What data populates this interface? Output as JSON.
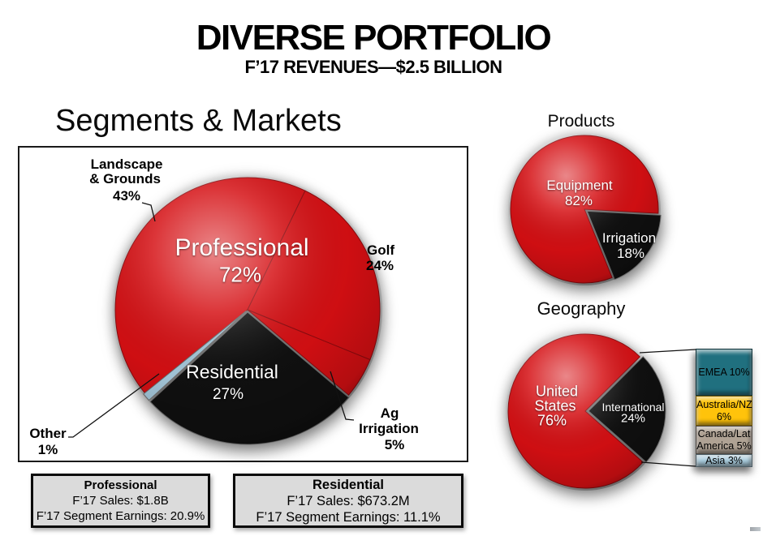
{
  "slide": {
    "title": "DIVERSE PORTFOLIO",
    "subtitle": "F’17 REVENUES—$2.5 BILLION"
  },
  "panels": {
    "segments_markets": {
      "heading": "Segments & Markets"
    },
    "products": {
      "heading": "Products"
    },
    "geography": {
      "heading": "Geography"
    }
  },
  "labels": {
    "main": {
      "professional": "Professional",
      "professional_pct": "72%",
      "residential": "Residential",
      "residential_pct": "27%",
      "landscape_1": "Landscape",
      "landscape_2": "& Grounds",
      "landscape_pct": "43%",
      "golf": "Golf",
      "golf_pct": "24%",
      "ag_1": "Ag",
      "ag_2": "Irrigation",
      "ag_pct": "5%",
      "other": "Other",
      "other_pct": "1%"
    },
    "products": {
      "equipment": "Equipment",
      "equipment_pct": "82%",
      "irrigation": "Irrigation",
      "irrigation_pct": "18%"
    },
    "geography": {
      "us_1": "United",
      "us_2": "States",
      "us_pct": "76%",
      "intl": "International",
      "intl_pct": "24%"
    }
  },
  "summary_boxes": [
    {
      "title": "Professional",
      "sales": "F’17 Sales: $1.8B",
      "earnings": "F’17 Segment Earnings: 20.9%"
    },
    {
      "title": "Residential",
      "sales": "F’17 Sales: $673.2M",
      "earnings": "F’17 Segment Earnings: 11.1%"
    }
  ],
  "colors": {
    "red": "#D50F13",
    "black": "#101010",
    "other_slice_blue": "#A6C9DC",
    "emea_teal": "#20707F",
    "australia_gold": "#FFC30B",
    "canada_tan": "#AFA294",
    "asia_blue": "#A9CCDD",
    "summary_box_gray": "#DBDBDB"
  },
  "chart_data": [
    {
      "type": "pie",
      "title": "Segments & Markets",
      "slices": [
        {
          "label": "Landscape & Grounds",
          "value": 43,
          "segment": "Professional",
          "color": "#D50F13"
        },
        {
          "label": "Golf",
          "value": 24,
          "segment": "Professional",
          "color": "#D50F13"
        },
        {
          "label": "Ag Irrigation",
          "value": 5,
          "segment": "Professional",
          "color": "#D50F13"
        },
        {
          "label": "Residential",
          "value": 27,
          "segment": "Residential",
          "color": "#101010"
        },
        {
          "label": "Other",
          "value": 1,
          "segment": "Other",
          "color": "#A6C9DC"
        }
      ],
      "segment_totals": [
        {
          "label": "Professional",
          "value": 72
        },
        {
          "label": "Residential",
          "value": 27
        },
        {
          "label": "Other",
          "value": 1
        }
      ]
    },
    {
      "type": "pie",
      "title": "Products",
      "slices": [
        {
          "label": "Equipment",
          "value": 82,
          "color": "#D50F13"
        },
        {
          "label": "Irrigation",
          "value": 18,
          "color": "#101010"
        }
      ]
    },
    {
      "type": "pie",
      "title": "Geography",
      "slices": [
        {
          "label": "United States",
          "value": 76,
          "color": "#D50F13"
        },
        {
          "label": "International",
          "value": 24,
          "color": "#101010"
        }
      ],
      "international_breakdown": [
        {
          "label": "EMEA",
          "value": 10,
          "color": "#20707F",
          "lines": [
            "EMEA 10%"
          ]
        },
        {
          "label": "Australia/NZ",
          "value": 6,
          "color": "#FFC30B",
          "lines": [
            "Australia/NZ",
            "6%"
          ]
        },
        {
          "label": "Canada/Lat America",
          "value": 5,
          "color": "#AFA294",
          "lines": [
            "Canada/Lat",
            "America 5%"
          ]
        },
        {
          "label": "Asia",
          "value": 3,
          "color": "#A9CCDD",
          "lines": [
            "Asia 3%"
          ]
        }
      ]
    }
  ]
}
